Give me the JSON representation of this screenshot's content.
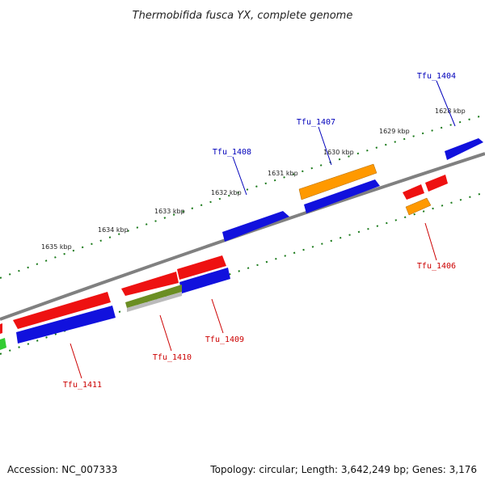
{
  "title": "Thermobifida fusca YX, complete genome",
  "footer": {
    "accession": "Accession: NC_007333",
    "summary": "Topology: circular; Length: 3,642,249 bp; Genes: 3,176"
  },
  "colors": {
    "backbone": "#808080",
    "tick": "#1a7a1a",
    "red": "#ee1111",
    "blue": "#1111dd",
    "orange": "#ff9900",
    "olive": "#6b8e23",
    "green": "#33cc33",
    "grey": "#bbbbbb",
    "label_blue": "#0000bb",
    "label_red": "#cc0000"
  },
  "kbp_labels": [
    "1628 kbp",
    "1629 kbp",
    "1630 kbp",
    "1631 kbp",
    "1632 kbp",
    "1633 kbp",
    "1634 kbp",
    "1635 kbp"
  ],
  "gene_labels": [
    {
      "id": "tfu-1404",
      "text": "Tfu_1404",
      "strand": "plus"
    },
    {
      "id": "tfu-1407",
      "text": "Tfu_1407",
      "strand": "plus"
    },
    {
      "id": "tfu-1408",
      "text": "Tfu_1408",
      "strand": "plus"
    },
    {
      "id": "tfu-1406",
      "text": "Tfu_1406",
      "strand": "minus"
    },
    {
      "id": "tfu-1409",
      "text": "Tfu_1409",
      "strand": "minus"
    },
    {
      "id": "tfu-1410",
      "text": "Tfu_1410",
      "strand": "minus"
    },
    {
      "id": "tfu-1411",
      "text": "Tfu_1411",
      "strand": "minus"
    }
  ]
}
